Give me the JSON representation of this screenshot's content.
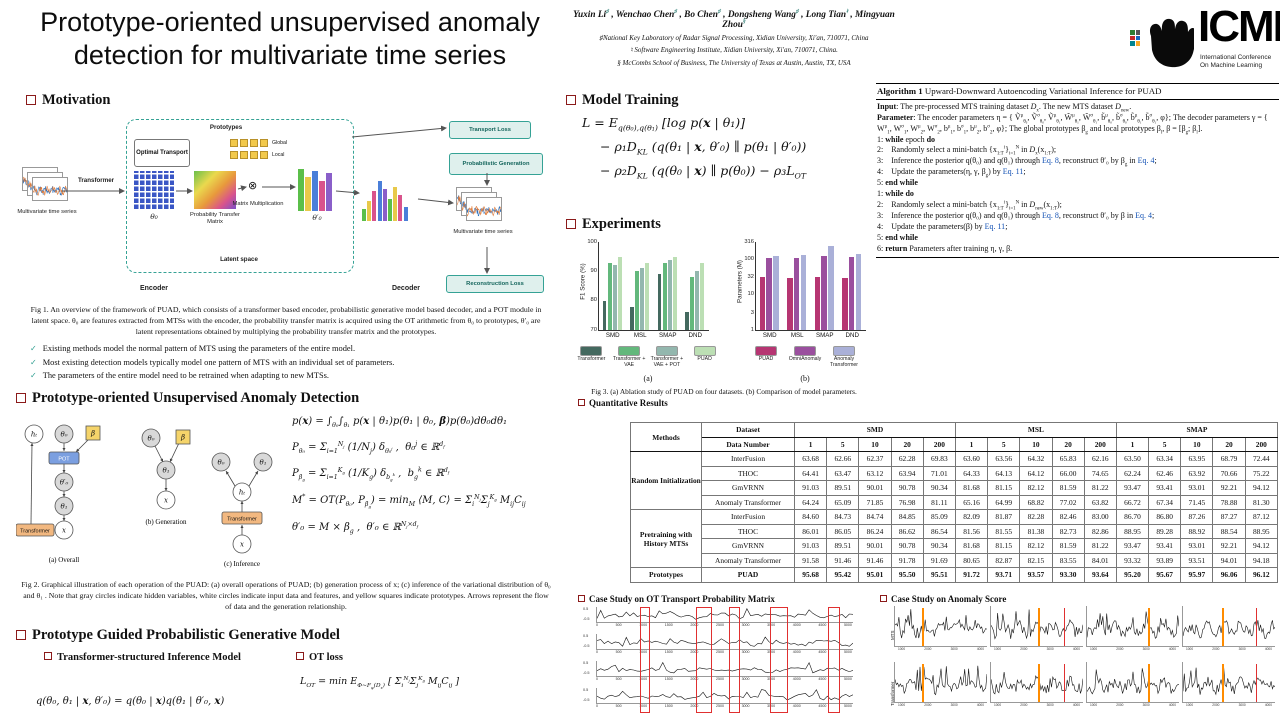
{
  "header": {
    "title": "Prototype-oriented unsupervised anomaly detection for multivariate time series",
    "authors_html": "Yuxin Li<sup class='am'>♯</sup> , Wenchao Chen<sup class='am'>♯</sup> , Bo Chen<sup class='am'>♯</sup> , Dongsheng Wang<sup class='am'>♯</sup> , Long Tian<sup class='am'>♮</sup> , Mingyuan Zhou<sup class='am'>§</sup>",
    "affiliations": [
      "♯National Key Laboratory of Radar Signal Processing, Xidian University, Xi'an, 710071, China",
      "♮ Software Engineering Institute, Xidian University, Xi'an, 710071, China.",
      "§ McCombs School of Business,  The University of Texas at Austin,  Austin, TX,  USA"
    ],
    "logo": {
      "wordmark": "ICML",
      "tagline1": "International Conference",
      "tagline2": "On Machine Learning"
    }
  },
  "sections": {
    "motivation": {
      "heading": "Motivation",
      "fig1_labels": {
        "mts_left": "Multivariate time series",
        "transformer": "Transformer",
        "optimal_transport": "Optimal Transport",
        "prototypes": "Prototypes",
        "global": "Global",
        "local": "Local",
        "theta0": "θ₀",
        "ptm": "Probability Transfer Matrix",
        "matrix_multiplication": "Matrix Multiplication",
        "otimes": "⊗",
        "theta0_prime": "θ′₀",
        "latent_space": "Latent space",
        "encoder": "Encoder",
        "decoder": "Decoder",
        "transport_loss": "Transport Loss",
        "probabilistic_generation": "Probabilistic Generation",
        "mts_right": "Multivariate time series",
        "reconstruction_loss": "Reconstruction Loss"
      },
      "fig1_caption": "Fig 1. An overview of the framework of PUAD, which consists of a transformer based encoder, probabilistic generative model based decoder, and a POT module in latent space. θ₀ are features extracted from MTSs with the encoder, the probability transfer matrix is acquired using the OT arithmetic from θ₀ to prototypes, θ′₀ are latent representations obtained by multiplying the probability transfer matrix and the prototypes.",
      "bullets": [
        "Existing methods model the normal pattern of MTS using the parameters of the entire model.",
        "Most existing detection models typically model one pattern of MTS with an individual set of parameters.",
        "The parameters of the entire model need to be retrained when adapting to new MTSs."
      ]
    },
    "puad": {
      "heading": "Prototype-oriented Unsupervised Anomaly Detection",
      "fig2_nodes": {
        "h": "hₜ",
        "theta0": "θ₀",
        "beta": "β",
        "pot": "POT",
        "theta0_prime": "θ′₀",
        "theta1": "θ₁",
        "x": "x",
        "transformer": "Transformer"
      },
      "fig2_captions": [
        "(a) Overall",
        "(b) Generation",
        "(c) Inference"
      ],
      "equations_html": [
        "p(<b>x</b>) = ∫<sub>θ₀</sub>∫<sub>θ₁</sub> p(<b>x</b> | θ₁)p(θ₁ | θ₀, <b>β</b>)p(θ₀)dθ₀dθ₁",
        "P<sub>θ₀</sub> = Σ<sub>i=1</sub><sup>N<sub>j</sub></sup> (1/N<sub>j</sub>) δ<sub>θ₀<sup>j</sup></sub> ,&nbsp; θ₀<sup>j</sup> ∈ ℝ<sup>d<sub>f</sub></sup>",
        "P<sub>β<sub>g</sub></sub> = Σ<sub>i=1</sub><sup>K<sub>g</sub></sup> (1/K<sub>g</sub>) δ<sub>b<sub>g</sub><sup>k</sup></sub> ,&nbsp; b<sub>g</sub><sup>k</sup> ∈ ℝ<sup>d<sub>f</sub></sup>",
        "M<sup>*</sup> = OT(P<sub>θ₀</sub>, P<sub>β<sub>g</sub></sub>) = min<sub>M</sub> ⟨M, C⟩ = Σ<sub>i</sub><sup>N<sub>j</sub></sup>Σ<sub>j</sub><sup>K<sub>g</sub></sup> M<sub>ij</sub>C<sub>ij</sub>",
        "θ′₀ = M × β<sub>g</sub> ,&nbsp; θ′₀ ∈ ℝ<sup>N<sub>j</sub>×d<sub>f</sub></sup>"
      ],
      "fig2_caption": "Fig 2. Graphical illustration of each operation of the PUAD: (a) overall operations of PUAD; (b) generation process of x; (c) inference of the variational distribution of θ₀ and θ₁ . Note that gray circles indicate hidden variables, white circles indicate input data and features, and yellow squares indicate prototypes. Arrows represent the flow of data and the generation relationship."
    },
    "generative": {
      "heading": "Prototype Guided Probabilistic Generative Model",
      "sub_inference": "Transformer-structured Inference Model",
      "sub_ot": "OT loss",
      "eq_inference_html": "q(θ₀, θ₁ | <b>x</b>, θ′₀) = q(θ₀ | <b>x</b>)q(θ₁ | θ′₀, <b>x</b>)",
      "eq_ot_html": "<i>L</i><sub>OT</sub> = min E<sub>Φ∼F<sub>φ</sub>(D<sub>x</sub>)</sub> [ Σ<sub>i</sub><sup>N<sub>j</sub></sup>Σ<sub>j</sub><sup>K<sub>g</sub></sup> M<sub>ij</sub>C<sub>ij</sub> ]"
    },
    "training": {
      "heading": "Model Training",
      "equations_html": [
        "<i>L</i> = E<sub>q(θ₀),q(θ₁)</sub> [log p(<b>x</b> | θ₁)]",
        "− ρ₁D<sub>KL</sub> (q(θ₁ | <b>x</b>, θ′₀) ∥ p(θ₁ | θ′₀))",
        "− ρ₂D<sub>KL</sub> (q(θ₀ | <b>x</b>) ∥ p(θ₀)) − ρ₃<i>L</i><sub>OT</sub>"
      ]
    },
    "experiments": {
      "heading": "Experiments",
      "fig3_caption": "Fig 3. (a) Ablation study of PUAD on four datasets. (b) Comparison of model parameters."
    },
    "quantitative": {
      "heading": "Quantitative Results"
    },
    "case_ot": {
      "heading": "Case Study on OT Transport Probability Matrix",
      "x_ticks": [
        "0",
        "500",
        "1000",
        "1500",
        "2000",
        "2500",
        "3000",
        "3500",
        "4000",
        "4500",
        "5000"
      ],
      "y_top": "0.5",
      "y_bottom": "-0.5"
    },
    "case_anomaly": {
      "heading": "Case Study on Anomaly Score",
      "row_labels": [
        "MTS",
        "Transformer"
      ],
      "x_ticks": [
        "1000",
        "2000",
        "3000",
        "4000"
      ]
    }
  },
  "algorithm": {
    "title_html": "<b>Algorithm 1</b> Upward-Downward Autoencoding Variational Inference for PUAD",
    "lines_html": [
      "<b>Input</b>: The pre-processed MTS training dataset <i>D</i><sub>x</sub>. The new MTS dataset <i>D</i><sub>new</sub>.",
      "<b>Parameter</b>: The encoder parameters η = { Ṽ<sup>μ</sup><sub>θ₀</sub>, Ṽ<sup>σ</sup><sub>θ₀</sub>, Ṽ<sup>μ</sup><sub>θ₁</sub>, W̃<sup>μ</sup><sub>θ₁</sub>, W̃<sup>σ</sup><sub>θ₁</sub>, b̃<sup>μ</sup><sub>θ₀</sub>, b̃<sup>σ</sup><sub>θ₀</sub>, b̃<sup>μ</sup><sub>θ₁</sub>, b̃<sup>σ</sup><sub>θ₁</sub>, φ}; The decoder parameters γ = { W<sup>μ</sup><sub>1</sub>, W<sup>σ</sup><sub>1</sub>, W<sup>μ</sup><sub>2</sub>, W<sup>σ</sup><sub>2</sub>, b<sup>μ</sup><sub>1</sub>, b<sup>σ</sup><sub>1</sub>, b<sup>μ</sup><sub>2</sub>, b<sup>σ</sup><sub>2</sub>, φ}; The global prototypes β<sub>g</sub> and local prototypes β<sub>l</sub>, β = [β<sub>g</sub>; β<sub>l</sub>].",
      "1: <b>while</b> epoch <b>do</b>",
      "2: &nbsp;&nbsp;&nbsp;Randomly select a mini-batch {x<sub>1:T</sub><sup>i</sup>}<sub>i=1</sub><sup>N</sup> in <i>D</i><sub>x</sub>(x<sub>1:T</sub>);",
      "3: &nbsp;&nbsp;&nbsp;Inference the posterior q(θ₀) and q(θ₁) through <span class='eqref'>Eq. 8</span>, reconstruct θ′₀ by β<sub>g</sub> in <span class='eqref'>Eq. 4</span>;",
      "4: &nbsp;&nbsp;&nbsp;Update the parameters(η, γ, β<sub>g</sub>) by <span class='eqref'>Eq. 11</span>;",
      "5: <b>end while</b>",
      "1: <b>while do</b>",
      "2: &nbsp;&nbsp;&nbsp;Randomly select a mini-batch {x<sub>1:T</sub><sup>i</sup>}<sub>i=1</sub><sup>N</sup> in <i>D</i><sub>new</sub>(x<sub>1:T</sub>);",
      "3: &nbsp;&nbsp;&nbsp;Inference the posterior q(θ₀) and q(θ₁) through <span class='eqref'>Eq. 8</span>, reconstruct θ′₀ by β in <span class='eqref'>Eq. 4</span>;",
      "4: &nbsp;&nbsp;&nbsp;Update the parameters(β) by <span class='eqref'>Eq. 11</span>;",
      "5: <b>end while</b>",
      "6: <b>return</b> Parameters after training η, γ, β."
    ]
  },
  "results_table": {
    "header": {
      "methods": "Methods",
      "dataset": "Dataset",
      "data_number": "Data Number",
      "groups": [
        "SMD",
        "MSL",
        "SMAP"
      ],
      "cols": [
        "1",
        "5",
        "10",
        "20",
        "200"
      ]
    },
    "row_groups": [
      {
        "label": "Random Initialization",
        "rows": [
          {
            "method": "InterFusion",
            "values": [
              "63.68",
              "62.66",
              "62.37",
              "62.28",
              "69.83",
              "63.60",
              "63.56",
              "64.32",
              "65.83",
              "62.16",
              "63.50",
              "63.34",
              "63.95",
              "68.79",
              "72.44"
            ]
          },
          {
            "method": "THOC",
            "values": [
              "64.41",
              "63.47",
              "63.12",
              "63.94",
              "71.01",
              "64.33",
              "64.13",
              "64.12",
              "66.00",
              "74.65",
              "62.24",
              "62.46",
              "63.92",
              "70.66",
              "75.22"
            ]
          },
          {
            "method": "GmVRNN",
            "values": [
              "91.03",
              "89.51",
              "90.01",
              "90.78",
              "90.34",
              "81.68",
              "81.15",
              "82.12",
              "81.59",
              "81.22",
              "93.47",
              "93.41",
              "93.01",
              "92.21",
              "94.12"
            ]
          },
          {
            "method": "Anomaly Transformer",
            "values": [
              "64.24",
              "65.09",
              "71.85",
              "76.98",
              "81.11",
              "65.16",
              "64.99",
              "68.82",
              "77.02",
              "63.82",
              "66.72",
              "67.34",
              "71.45",
              "78.88",
              "81.30"
            ]
          }
        ]
      },
      {
        "label": "Pretraining with History MTSs",
        "rows": [
          {
            "method": "InterFusion",
            "values": [
              "84.60",
              "84.73",
              "84.74",
              "84.85",
              "85.09",
              "82.09",
              "81.87",
              "82.28",
              "82.46",
              "83.00",
              "86.70",
              "86.80",
              "87.26",
              "87.27",
              "87.12"
            ]
          },
          {
            "method": "THOC",
            "values": [
              "86.01",
              "86.05",
              "86.24",
              "86.62",
              "86.54",
              "81.56",
              "81.55",
              "81.38",
              "82.73",
              "82.86",
              "88.95",
              "89.28",
              "88.92",
              "88.54",
              "88.95"
            ]
          },
          {
            "method": "GmVRNN",
            "values": [
              "91.03",
              "89.51",
              "90.01",
              "90.78",
              "90.34",
              "81.68",
              "81.15",
              "82.12",
              "81.59",
              "81.22",
              "93.47",
              "93.41",
              "93.01",
              "92.21",
              "94.12"
            ]
          },
          {
            "method": "Anomaly Transformer",
            "values": [
              "91.58",
              "91.46",
              "91.46",
              "91.78",
              "91.69",
              "80.65",
              "82.87",
              "82.15",
              "83.55",
              "84.01",
              "93.32",
              "93.89",
              "93.51",
              "94.01",
              "94.18"
            ]
          }
        ]
      },
      {
        "label": "Prototypes",
        "rows": [
          {
            "method": "PUAD",
            "bold": true,
            "values": [
              "95.68",
              "95.42",
              "95.01",
              "95.50",
              "95.51",
              "91.72",
              "93.71",
              "93.57",
              "93.30",
              "93.64",
              "95.20",
              "95.67",
              "95.97",
              "96.06",
              "96.12"
            ]
          }
        ]
      }
    ]
  },
  "chart_data": [
    {
      "type": "bar",
      "sub_label": "(a)",
      "ylabel": "F1 Score (%)",
      "ylim": [
        70,
        100
      ],
      "yticks": [
        70,
        80,
        90,
        100
      ],
      "categories": [
        "SMD",
        "MSL",
        "SMAP",
        "DND"
      ],
      "series": [
        {
          "name": "Transformer",
          "color": "#44695f",
          "values": [
            80,
            78,
            89,
            76
          ]
        },
        {
          "name": "Transformer + VAE",
          "color": "#63b87c",
          "values": [
            93,
            90,
            93,
            88
          ]
        },
        {
          "name": "Transformer + VAE + POT",
          "color": "#93b7ae",
          "values": [
            92,
            91,
            94,
            90
          ]
        },
        {
          "name": "PUAD",
          "color": "#bcdfb4",
          "values": [
            95,
            93,
            95,
            93
          ]
        }
      ]
    },
    {
      "type": "bar",
      "log": true,
      "sub_label": "(b)",
      "ylabel": "Parameters (M)",
      "ylim": [
        1,
        316
      ],
      "yticks": [
        1,
        3,
        10,
        32,
        100,
        316
      ],
      "categories": [
        "SMD",
        "MSL",
        "SMAP",
        "DND"
      ],
      "series": [
        {
          "name": "PUAD",
          "color": "#b63572",
          "values": [
            32,
            30,
            33,
            31
          ]
        },
        {
          "name": "OmniAnomaly",
          "color": "#9a4f9e",
          "values": [
            110,
            108,
            125,
            115
          ]
        },
        {
          "name": "Anomaly Transformer",
          "color": "#aab0d8",
          "values": [
            130,
            135,
            240,
            140
          ]
        }
      ]
    }
  ]
}
